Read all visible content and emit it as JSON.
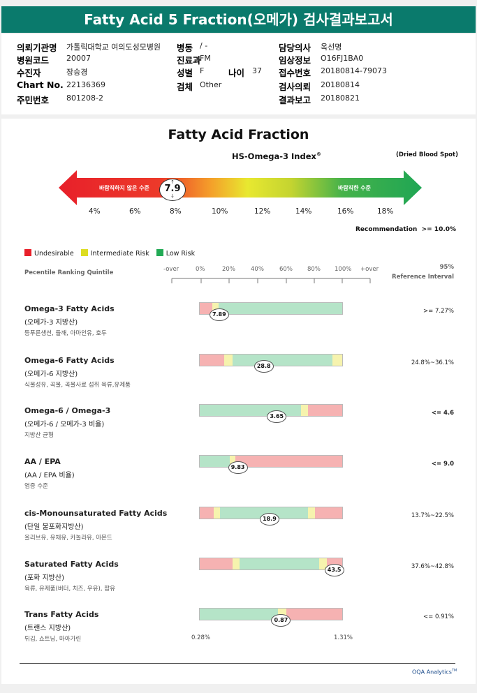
{
  "title": "Fatty Acid 5 Fraction(오메가) 검사결과보고서",
  "info": {
    "fields": [
      {
        "label": "의뢰기관명",
        "value": "가톨릭대학교 여의도성모병원",
        "col": 0,
        "row": 0
      },
      {
        "label": "병원코드",
        "value": "20007",
        "col": 0,
        "row": 1
      },
      {
        "label": "수진자",
        "value": "장승경",
        "col": 0,
        "row": 2
      },
      {
        "label": "Chart No.",
        "value": "22136369",
        "col": 0,
        "row": 3
      },
      {
        "label": "주민번호",
        "value": "801208-2",
        "col": 0,
        "row": 4
      },
      {
        "label": "병동",
        "value": "/ -",
        "col": 1,
        "row": 0
      },
      {
        "label": "진료과",
        "value": "FM",
        "col": 1,
        "row": 1
      },
      {
        "label": "성별",
        "value": "F",
        "col": 1,
        "row": 2
      },
      {
        "label": "검체",
        "value": "Other",
        "col": 1,
        "row": 3
      },
      {
        "label": "담당의사",
        "value": "옥선명",
        "col": 3,
        "row": 0
      },
      {
        "label": "임상정보",
        "value": "O16FJ1BA0",
        "col": 3,
        "row": 1
      },
      {
        "label": "접수번호",
        "value": "20180814-79073",
        "col": 3,
        "row": 2
      },
      {
        "label": "검사의뢰",
        "value": "20180814",
        "col": 3,
        "row": 3
      },
      {
        "label": "결과보고",
        "value": "20180821",
        "col": 3,
        "row": 4
      },
      {
        "label": "나이",
        "value": "37",
        "col": 2,
        "row": 2
      }
    ]
  },
  "report": {
    "heading": "Fatty Acid Fraction",
    "index_title": "HS-Omega-3 Index",
    "index_sup": "®",
    "sample_type": "(Dried Blood Spot)",
    "undesirable_label": "바람직하지 않은 수준",
    "desirable_label": "바람직한 수준",
    "index_value": "7.9",
    "index_ticks": [
      "4%",
      "6%",
      "8%",
      "10%",
      "12%",
      "14%",
      "16%",
      "18%"
    ],
    "recommendation_label": "Recommendation",
    "recommendation_value": ">= 10.0%",
    "legend": [
      {
        "label": "Undesirable",
        "color": "#e8202a"
      },
      {
        "label": "Intermediate Risk",
        "color": "#dddd22"
      },
      {
        "label": "Low Risk",
        "color": "#22aa55"
      }
    ],
    "percentile_label": "Pecentile Ranking Quintile",
    "percentile_ticks": [
      "-over",
      "0%",
      "20%",
      "40%",
      "60%",
      "80%",
      "100%",
      "+over"
    ],
    "ref_head_1": "95%",
    "ref_head_2": "Reference Interval",
    "bottom_left": "0.28%",
    "bottom_right": "1.31%",
    "footer": "OQA Analytics",
    "footer_sup": "TM"
  },
  "colors": {
    "red": "#f6b2b2",
    "yellow": "#f6f3ae",
    "green": "#b5e4c8"
  },
  "rows": [
    {
      "title": "Omega-3 Fatty Acids",
      "sub": "(오메가-3 지방산)",
      "desc": "등푸른생선, 들깨, 아마인유, 호두",
      "ref": ">= 7.27%",
      "value": "7.89",
      "pos": 0.14,
      "segments": [
        [
          "red",
          0.09
        ],
        [
          "yellow",
          0.04
        ],
        [
          "green",
          0.87
        ]
      ]
    },
    {
      "title": "Omega-6 Fatty Acids",
      "sub": "(오메가-6 지방산)",
      "desc": "식물성유, 곡물, 곡물사료 섭취 육류,유제품",
      "ref": "24.8%~36.1%",
      "value": "28.8",
      "pos": 0.45,
      "segments": [
        [
          "red",
          0.17
        ],
        [
          "yellow",
          0.06
        ],
        [
          "green",
          0.7
        ],
        [
          "yellow",
          0.07
        ]
      ]
    },
    {
      "title": "Omega-6 / Omega-3",
      "sub": "(오메가-6 / 오메가-3 비율)",
      "desc": "지방산 균형",
      "ref": "<= 4.6",
      "value": "3.65",
      "pos": 0.54,
      "segments": [
        [
          "green",
          0.71
        ],
        [
          "yellow",
          0.05
        ],
        [
          "red",
          0.24
        ]
      ]
    },
    {
      "title": "AA / EPA",
      "sub": "(AA / EPA 비율)",
      "desc": "염증 수준",
      "ref": "<= 9.0",
      "value": "9.83",
      "pos": 0.27,
      "segments": [
        [
          "green",
          0.21
        ],
        [
          "yellow",
          0.04
        ],
        [
          "red",
          0.75
        ]
      ]
    },
    {
      "title": "cis-Monounsaturated Fatty Acids",
      "sub": "(단일 불포화지방산)",
      "desc": "올리브유, 유채유, 카놀라유, 아몬드",
      "ref": "13.7%~22.5%",
      "value": "18.9",
      "pos": 0.49,
      "segments": [
        [
          "red",
          0.1
        ],
        [
          "yellow",
          0.04
        ],
        [
          "green",
          0.62
        ],
        [
          "yellow",
          0.05
        ],
        [
          "red",
          0.19
        ]
      ]
    },
    {
      "title": "Saturated Fatty Acids",
      "sub": "(포화 지방산)",
      "desc": "육류, 유제품(버터, 치즈, 우유), 팜유",
      "ref": "37.6%~42.8%",
      "value": "43.5",
      "pos": 0.94,
      "segments": [
        [
          "red",
          0.23
        ],
        [
          "yellow",
          0.05
        ],
        [
          "green",
          0.56
        ],
        [
          "yellow",
          0.05
        ],
        [
          "red",
          0.11
        ]
      ]
    },
    {
      "title": "Trans Fatty Acids",
      "sub": "(트랜스 지방산)",
      "desc": "튀김, 쇼트닝, 마아가린",
      "ref": "<= 0.91%",
      "value": "0.87",
      "pos": 0.57,
      "segments": [
        [
          "green",
          0.55
        ],
        [
          "yellow",
          0.06
        ],
        [
          "red",
          0.39
        ]
      ]
    }
  ]
}
